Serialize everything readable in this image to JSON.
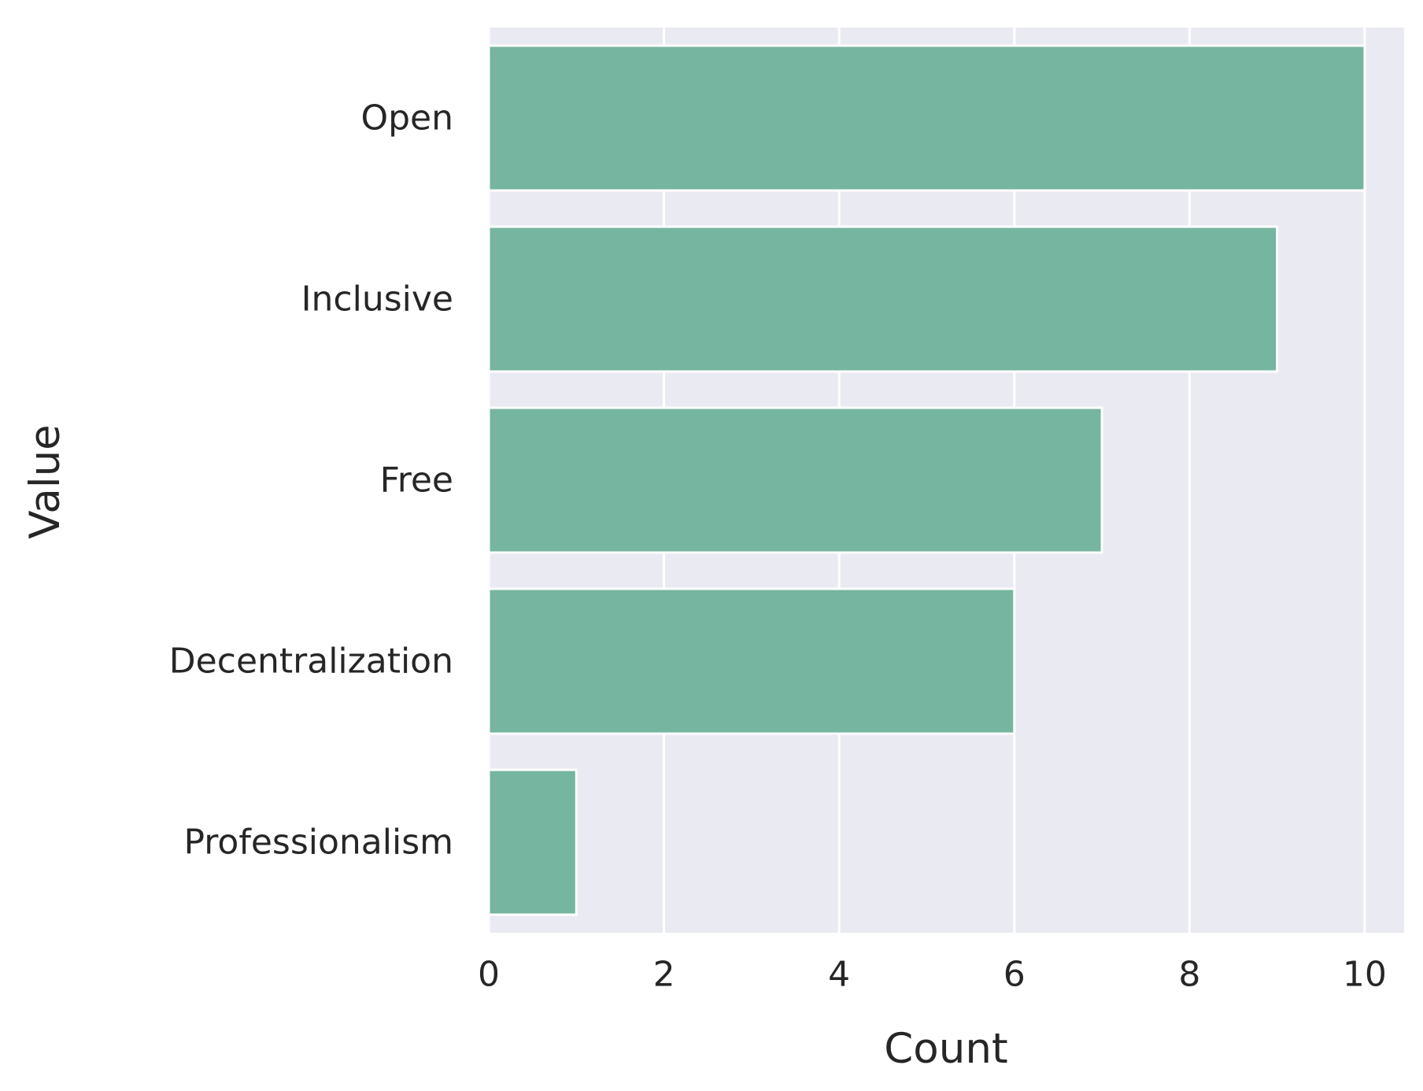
{
  "chart_data": {
    "type": "bar",
    "orientation": "horizontal",
    "categories": [
      "Open",
      "Inclusive",
      "Free",
      "Decentralization",
      "Professionalism"
    ],
    "values": [
      10,
      9,
      7,
      6,
      1
    ],
    "xlabel": "Count",
    "ylabel": "Value",
    "xlim": [
      0,
      10.45
    ],
    "xticks": [
      0,
      2,
      4,
      6,
      8,
      10
    ],
    "grid": true,
    "colors": {
      "bar": "#76b5a0",
      "background": "#eaeaf2",
      "grid": "#ffffff",
      "text": "#262626"
    }
  }
}
